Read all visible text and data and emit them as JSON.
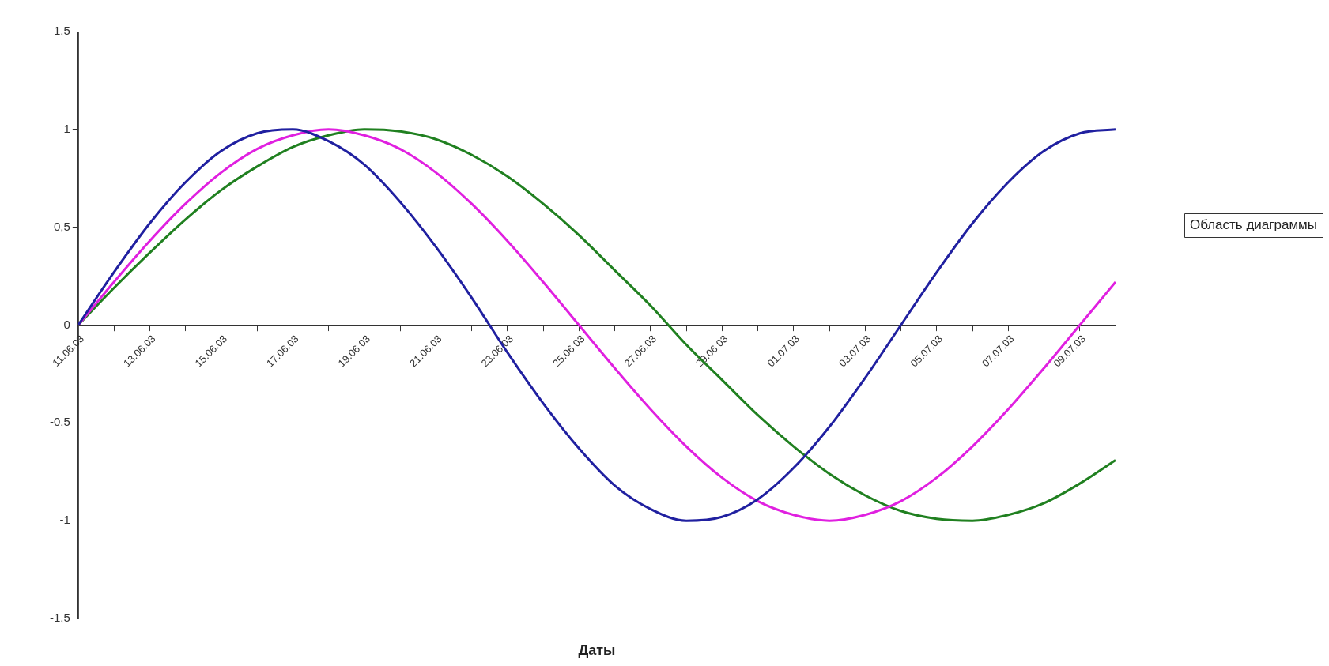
{
  "chart_data": {
    "type": "line",
    "xlabel": "Даты",
    "x": [
      "--06-11",
      "--06-12",
      "--06-13",
      "--06-14",
      "--06-15",
      "--06-16",
      "--06-17",
      "--06-18",
      "--06-19",
      "--06-20",
      "--06-21",
      "--06-22",
      "--06-23",
      "--06-24",
      "--06-25",
      "--06-26",
      "--06-27",
      "--06-28",
      "--06-29",
      "--06-30",
      "--07-01",
      "--07-02",
      "--07-03",
      "--07-04",
      "--07-05",
      "--07-06",
      "--07-07",
      "--07-08",
      "--07-09",
      "--07-10"
    ],
    "series": [
      {
        "color": "#2020a0",
        "values": [
          0,
          0.27,
          0.52,
          0.73,
          0.89,
          0.98,
          1.0,
          0.94,
          0.82,
          0.63,
          0.4,
          0.14,
          -0.14,
          -0.4,
          -0.63,
          -0.82,
          -0.94,
          -1.0,
          -0.98,
          -0.89,
          -0.73,
          -0.52,
          -0.27,
          0,
          0.27,
          0.52,
          0.73,
          0.89,
          0.98,
          1.0
        ]
      },
      {
        "color": "#e020e0",
        "values": [
          0,
          0.22,
          0.43,
          0.62,
          0.78,
          0.9,
          0.97,
          1.0,
          0.97,
          0.9,
          0.78,
          0.62,
          0.43,
          0.22,
          0,
          -0.22,
          -0.43,
          -0.62,
          -0.78,
          -0.9,
          -0.97,
          -1.0,
          -0.97,
          -0.9,
          -0.78,
          -0.62,
          -0.43,
          -0.22,
          0,
          0.22
        ]
      },
      {
        "color": "#208020",
        "values": [
          0,
          0.19,
          0.37,
          0.54,
          0.69,
          0.81,
          0.91,
          0.97,
          1.0,
          0.99,
          0.95,
          0.87,
          0.76,
          0.62,
          0.46,
          0.28,
          0.1,
          -0.1,
          -0.28,
          -0.46,
          -0.62,
          -0.76,
          -0.87,
          -0.95,
          -0.99,
          -1.0,
          -0.97,
          -0.91,
          -0.81,
          -0.69
        ]
      }
    ],
    "xlim": [
      "--06-11",
      "--07-10"
    ],
    "xticks": [
      {
        "value": "--06-11",
        "label": "11.06.03"
      },
      {
        "value": "--06-12",
        "label": null
      },
      {
        "value": "--06-13",
        "label": "13.06.03"
      },
      {
        "value": "--06-14",
        "label": null
      },
      {
        "value": "--06-15",
        "label": "15.06.03"
      },
      {
        "value": "--06-16",
        "label": null
      },
      {
        "value": "--06-17",
        "label": "17.06.03"
      },
      {
        "value": "--06-18",
        "label": null
      },
      {
        "value": "--06-19",
        "label": "19.06.03"
      },
      {
        "value": "--06-20",
        "label": null
      },
      {
        "value": "--06-21",
        "label": "21.06.03"
      },
      {
        "value": "--06-22",
        "label": null
      },
      {
        "value": "--06-23",
        "label": "23.06.03"
      },
      {
        "value": "--06-24",
        "label": null
      },
      {
        "value": "--06-25",
        "label": "25.06.03"
      },
      {
        "value": "--06-26",
        "label": null
      },
      {
        "value": "--06-27",
        "label": "27.06.03"
      },
      {
        "value": "--06-28",
        "label": null
      },
      {
        "value": "--06-29",
        "label": "29.06.03"
      },
      {
        "value": "--06-30",
        "label": null
      },
      {
        "value": "--07-01",
        "label": "01.07.03"
      },
      {
        "value": "--07-02",
        "label": null
      },
      {
        "value": "--07-03",
        "label": "03.07.03"
      },
      {
        "value": "--07-04",
        "label": null
      },
      {
        "value": "--07-05",
        "label": "05.07.03"
      },
      {
        "value": "--07-06",
        "label": null
      },
      {
        "value": "--07-07",
        "label": "07.07.03"
      },
      {
        "value": "--07-08",
        "label": null
      },
      {
        "value": "--07-09",
        "label": "09.07.03"
      },
      {
        "value": "--07-10",
        "label": null
      }
    ],
    "ylim": [
      -1.5,
      1.5
    ],
    "yticks": [
      {
        "value": -1.5,
        "label": "-1,5"
      },
      -1,
      {
        "value": -0.5,
        "label": "-0,5"
      },
      0,
      {
        "value": 0.5,
        "label": "0,5"
      },
      1,
      {
        "value": 1.5,
        "label": "1,5"
      }
    ],
    "annotations": [
      "Область диаграммы"
    ],
    "grid": false,
    "legend": false,
    "marker": "none",
    "line_style": "solid"
  }
}
